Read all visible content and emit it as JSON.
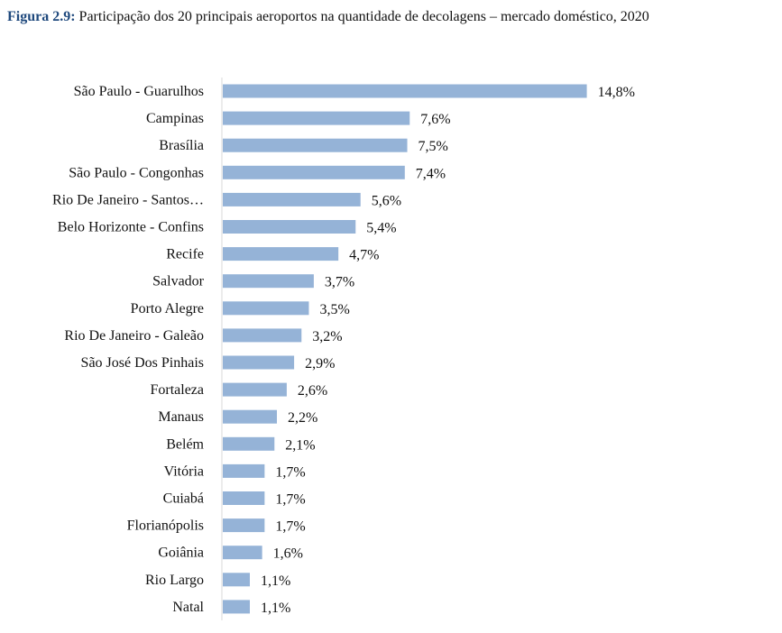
{
  "caption": {
    "label": "Figura 2.9:",
    "text": "Participação dos 20 principais aeroportos na quantidade de decolagens – mercado doméstico, 2020"
  },
  "colors": {
    "bar": "#95b3d7",
    "caption_label": "#1f497d"
  },
  "chart_data": {
    "type": "bar",
    "orientation": "horizontal",
    "categories": [
      "São Paulo - Guarulhos",
      "Campinas",
      "Brasília",
      "São Paulo - Congonhas",
      "Rio De Janeiro - Santos…",
      "Belo Horizonte - Confins",
      "Recife",
      "Salvador",
      "Porto Alegre",
      "Rio De Janeiro - Galeão",
      "São José Dos Pinhais",
      "Fortaleza",
      "Manaus",
      "Belém",
      "Vitória",
      "Cuiabá",
      "Florianópolis",
      "Goiânia",
      "Rio Largo",
      "Natal"
    ],
    "values": [
      14.8,
      7.6,
      7.5,
      7.4,
      5.6,
      5.4,
      4.7,
      3.7,
      3.5,
      3.2,
      2.9,
      2.6,
      2.2,
      2.1,
      1.7,
      1.7,
      1.7,
      1.6,
      1.1,
      1.1
    ],
    "value_labels": [
      "14,8%",
      "7,6%",
      "7,5%",
      "7,4%",
      "5,6%",
      "5,4%",
      "4,7%",
      "3,7%",
      "3,5%",
      "3,2%",
      "2,9%",
      "2,6%",
      "2,2%",
      "2,1%",
      "1,7%",
      "1,7%",
      "1,7%",
      "1,6%",
      "1,1%",
      "1,1%"
    ],
    "unit": "%",
    "grid": false,
    "legend": "none"
  }
}
